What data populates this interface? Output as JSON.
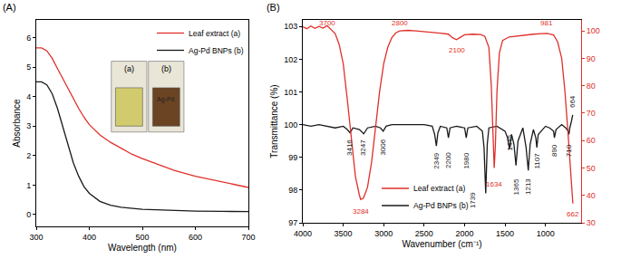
{
  "chart_data": [
    {
      "type": "line",
      "title": "(A)",
      "x_label": "Wavelength (nm)",
      "y_label": "Absorbance",
      "xlim": [
        300,
        700
      ],
      "xticks": [
        300,
        400,
        500,
        600,
        700
      ],
      "ylim": [
        -0.4,
        6.6
      ],
      "yticks": [
        0,
        1,
        2,
        3,
        4,
        5,
        6
      ],
      "grid": false,
      "legend": "top right",
      "series": [
        {
          "name": "Leaf extract (a)",
          "color": "#e0302a",
          "x": [
            300,
            310,
            320,
            330,
            340,
            350,
            360,
            370,
            380,
            390,
            400,
            420,
            440,
            460,
            480,
            500,
            530,
            560,
            600,
            650,
            700
          ],
          "values": [
            5.65,
            5.65,
            5.55,
            5.3,
            4.95,
            4.6,
            4.25,
            3.9,
            3.6,
            3.3,
            3.05,
            2.7,
            2.45,
            2.25,
            2.05,
            1.9,
            1.7,
            1.5,
            1.3,
            1.1,
            0.92
          ]
        },
        {
          "name": "Ag-Pd BNPs (b)",
          "color": "#1a1a1a",
          "x": [
            300,
            310,
            320,
            330,
            340,
            350,
            360,
            370,
            380,
            390,
            400,
            420,
            440,
            460,
            500,
            550,
            600,
            650,
            700
          ],
          "values": [
            4.5,
            4.5,
            4.4,
            4.1,
            3.6,
            3.0,
            2.35,
            1.75,
            1.3,
            0.95,
            0.72,
            0.45,
            0.32,
            0.25,
            0.18,
            0.14,
            0.12,
            0.11,
            0.1
          ]
        }
      ],
      "inset": [
        {
          "label": "(a)",
          "color": "#d2cb6e"
        },
        {
          "label": "(b)",
          "color": "#6b4424",
          "note": "Ag-Pd"
        }
      ]
    },
    {
      "type": "line",
      "title": "(B)",
      "x_label": "Wavenumber (cm⁻¹)",
      "y_label": "Transmittance (%)",
      "xlim": [
        4000,
        560
      ],
      "xticks": [
        4000,
        3500,
        3000,
        2500,
        2000,
        1500,
        1000
      ],
      "ylim": [
        97,
        103.2
      ],
      "yticks": [
        97,
        98,
        99,
        100,
        101,
        102,
        103
      ],
      "y2lim": [
        30,
        104
      ],
      "y2ticks": [
        30,
        40,
        50,
        60,
        70,
        80,
        90,
        100
      ],
      "grid": false,
      "legend": "bottom center",
      "series": [
        {
          "name": "Leaf extract (a)",
          "color": "#e0302a",
          "axis": "y2",
          "x": [
            4000,
            3950,
            3900,
            3850,
            3800,
            3750,
            3700,
            3650,
            3600,
            3550,
            3500,
            3450,
            3400,
            3350,
            3300,
            3284,
            3250,
            3200,
            3150,
            3100,
            3050,
            3000,
            2950,
            2900,
            2850,
            2800,
            2700,
            2600,
            2500,
            2400,
            2300,
            2200,
            2150,
            2100,
            2050,
            2000,
            1900,
            1800,
            1750,
            1700,
            1670,
            1650,
            1634,
            1620,
            1600,
            1570,
            1530,
            1450,
            1300,
            1150,
            1050,
            981,
            900,
            850,
            800,
            760,
            720,
            690,
            662
          ],
          "values": [
            101.5,
            100.8,
            101.8,
            100.9,
            101.6,
            101.0,
            101.9,
            100.5,
            99,
            95,
            88,
            75,
            60,
            47,
            40,
            38.5,
            39,
            43,
            52,
            65,
            78,
            88,
            94,
            97.5,
            99.3,
            100,
            100.2,
            100,
            99.8,
            99.5,
            99.2,
            98.8,
            97.5,
            96.8,
            97.8,
            98.6,
            98.8,
            98.7,
            98,
            94,
            80,
            62,
            50,
            58,
            78,
            92,
            96.5,
            97.8,
            98.4,
            98.8,
            99,
            99.1,
            98.5,
            96,
            90,
            78,
            62,
            48,
            37
          ]
        },
        {
          "name": "Ag-Pd BNPs (b)",
          "color": "#1a1a1a",
          "axis": "y",
          "x": [
            4000,
            3900,
            3800,
            3700,
            3600,
            3500,
            3450,
            3416,
            3380,
            3300,
            3247,
            3200,
            3100,
            3040,
            3006,
            2970,
            2900,
            2700,
            2500,
            2400,
            2370,
            2349,
            2330,
            2300,
            2220,
            2200,
            2180,
            2100,
            2000,
            1980,
            1960,
            1850,
            1780,
            1760,
            1739,
            1720,
            1700,
            1600,
            1500,
            1470,
            1445,
            1420,
            1390,
            1365,
            1340,
            1280,
            1240,
            1213,
            1190,
            1150,
            1120,
            1107,
            1090,
            1000,
            950,
            900,
            890,
            870,
            800,
            750,
            720,
            710,
            700,
            680,
            664
          ],
          "values": [
            100,
            99.95,
            100,
            99.95,
            99.9,
            99.95,
            99.85,
            99.75,
            99.9,
            99.85,
            99.72,
            99.9,
            99.95,
            99.9,
            99.8,
            99.95,
            100,
            100,
            100,
            99.95,
            99.7,
            99.35,
            99.75,
            99.95,
            99.9,
            99.6,
            99.9,
            99.95,
            99.9,
            99.6,
            99.9,
            99.95,
            99.8,
            99.3,
            97.9,
            99.4,
            99.9,
            99.95,
            99.8,
            99.6,
            99.25,
            99.7,
            99.4,
            98.75,
            99.5,
            99.9,
            99.3,
            98.6,
            99.4,
            99.85,
            99.6,
            99.3,
            99.7,
            99.95,
            99.9,
            99.8,
            99.6,
            99.85,
            100,
            99.9,
            99.8,
            99.7,
            99.9,
            100.1,
            100.3
          ]
        }
      ],
      "annotations": [
        {
          "text": "3700",
          "x": 3700,
          "y": 103,
          "axis": "y2",
          "color": "#e0302a"
        },
        {
          "text": "2800",
          "x": 2800,
          "y": 103,
          "axis": "y2",
          "color": "#e0302a"
        },
        {
          "text": "2100",
          "x": 2100,
          "y": 93,
          "axis": "y2",
          "color": "#e0302a"
        },
        {
          "text": "3284",
          "x": 3284,
          "y": 34,
          "axis": "y2",
          "color": "#e0302a"
        },
        {
          "text": "1634",
          "x": 1634,
          "y": 44,
          "axis": "y2",
          "color": "#e0302a"
        },
        {
          "text": "981",
          "x": 981,
          "y": 103,
          "axis": "y2",
          "color": "#e0302a"
        },
        {
          "text": "662",
          "x": 662,
          "y": 33,
          "axis": "y2",
          "color": "#e0302a"
        },
        {
          "text": "3416",
          "x": 3416,
          "y": 99.3,
          "axis": "y",
          "color": "#1a1a1a"
        },
        {
          "text": "3247",
          "x": 3247,
          "y": 99.3,
          "axis": "y",
          "color": "#1a1a1a"
        },
        {
          "text": "3006",
          "x": 3006,
          "y": 99.3,
          "axis": "y",
          "color": "#1a1a1a"
        },
        {
          "text": "2349",
          "x": 2349,
          "y": 98.9,
          "axis": "y",
          "color": "#1a1a1a"
        },
        {
          "text": "2200",
          "x": 2200,
          "y": 98.9,
          "axis": "y",
          "color": "#1a1a1a"
        },
        {
          "text": "1980",
          "x": 1980,
          "y": 98.9,
          "axis": "y",
          "color": "#1a1a1a"
        },
        {
          "text": "1739",
          "x": 1900,
          "y": 97.7,
          "axis": "y",
          "color": "#1a1a1a"
        },
        {
          "text": "1445",
          "x": 1445,
          "y": 99.45,
          "axis": "y",
          "color": "#1a1a1a"
        },
        {
          "text": "1365",
          "x": 1365,
          "y": 98.1,
          "axis": "y",
          "color": "#1a1a1a"
        },
        {
          "text": "1213",
          "x": 1213,
          "y": 98.1,
          "axis": "y",
          "color": "#1a1a1a"
        },
        {
          "text": "1107",
          "x": 1107,
          "y": 98.9,
          "axis": "y",
          "color": "#1a1a1a"
        },
        {
          "text": "890",
          "x": 890,
          "y": 99.2,
          "axis": "y",
          "color": "#1a1a1a"
        },
        {
          "text": "710",
          "x": 710,
          "y": 99.2,
          "axis": "y",
          "color": "#1a1a1a"
        },
        {
          "text": "664",
          "x": 664,
          "y": 100.7,
          "axis": "y",
          "color": "#1a1a1a"
        }
      ]
    }
  ]
}
